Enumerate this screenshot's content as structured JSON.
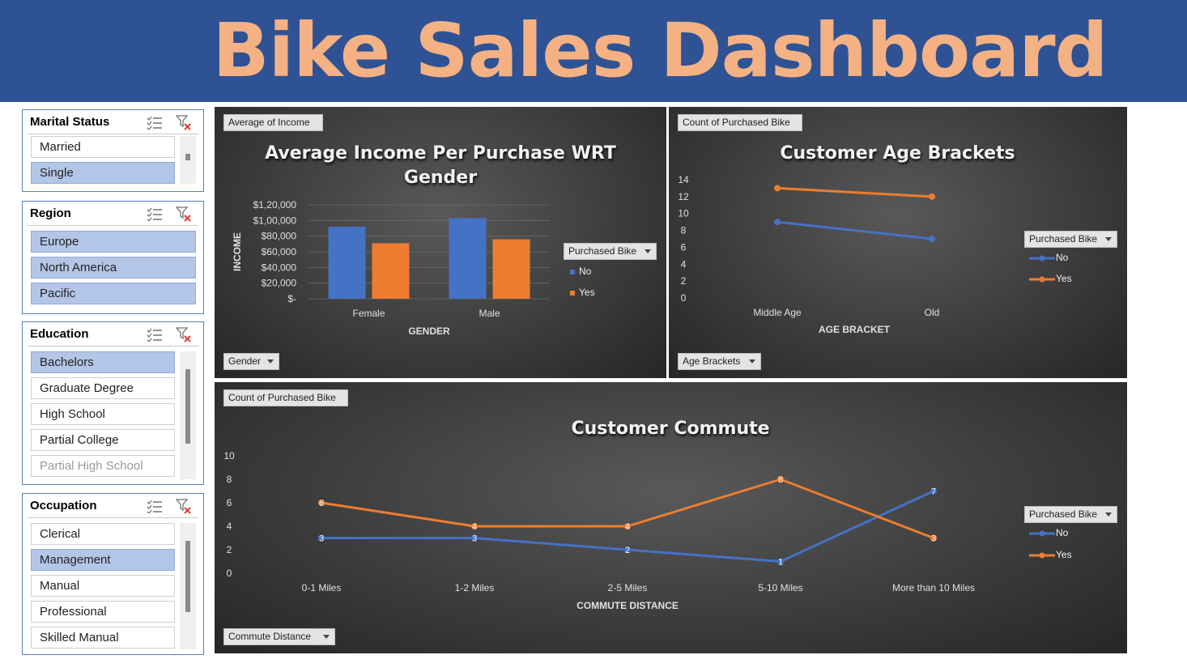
{
  "banner": {
    "title": "Bike Sales Dashboard"
  },
  "slicers": {
    "marital": {
      "title": "Marital Status",
      "items": [
        {
          "label": "Married"
        },
        {
          "label": "Single"
        }
      ]
    },
    "region": {
      "title": "Region",
      "items": [
        {
          "label": "Europe"
        },
        {
          "label": "North America"
        },
        {
          "label": "Pacific"
        }
      ]
    },
    "education": {
      "title": "Education",
      "items": [
        {
          "label": "Bachelors"
        },
        {
          "label": "Graduate Degree"
        },
        {
          "label": "High School"
        },
        {
          "label": "Partial College"
        },
        {
          "label": "Partial High School"
        }
      ]
    },
    "occupation": {
      "title": "Occupation",
      "items": [
        {
          "label": "Clerical"
        },
        {
          "label": "Management"
        },
        {
          "label": "Manual"
        },
        {
          "label": "Professional"
        },
        {
          "label": "Skilled Manual"
        }
      ]
    }
  },
  "icons": {
    "multi_select": "multi-select-icon",
    "clear_filter": "clear-filter-icon"
  },
  "colors": {
    "banner": "#2e5293",
    "title": "#f4b183",
    "series_no": "#4472c4",
    "series_yes": "#ed7d31",
    "selected_item": "#b4c6e7"
  },
  "chart_data": [
    {
      "type": "bar",
      "title": "Average Income Per Purchase WRT Gender",
      "value_field": "Average of Income",
      "axis_field": "Gender",
      "xlabel": "GENDER",
      "ylabel": "INCOME",
      "categories": [
        "Female",
        "Male"
      ],
      "series": [
        {
          "name": "No",
          "values": [
            92000,
            103000
          ]
        },
        {
          "name": "Yes",
          "values": [
            71000,
            76000
          ]
        }
      ],
      "ylim": [
        0,
        120000
      ],
      "yticks": [
        "$-",
        "$20,000",
        "$40,000",
        "$60,000",
        "$80,000",
        "$1,00,000",
        "$1,20,000"
      ],
      "legend_title": "Purchased Bike",
      "legend_position": "right",
      "grid": true
    },
    {
      "type": "line",
      "title": "Customer Age Brackets",
      "value_field": "Count of Purchased Bike",
      "axis_field": "Age Brackets",
      "xlabel": "AGE BRACKET",
      "categories": [
        "Middle Age",
        "Old"
      ],
      "series": [
        {
          "name": "No",
          "values": [
            9,
            7
          ]
        },
        {
          "name": "Yes",
          "values": [
            13,
            12
          ]
        }
      ],
      "ylim": [
        0,
        14
      ],
      "yticks": [
        "0",
        "2",
        "4",
        "6",
        "8",
        "10",
        "12",
        "14"
      ],
      "legend_title": "Purchased Bike",
      "legend_position": "right",
      "grid": false
    },
    {
      "type": "line",
      "title": "Customer Commute",
      "value_field": "Count of Purchased Bike",
      "axis_field": "Commute Distance",
      "xlabel": "COMMUTE DISTANCE",
      "categories": [
        "0-1 Miles",
        "1-2 Miles",
        "2-5 Miles",
        "5-10 Miles",
        "More than 10 Miles"
      ],
      "series": [
        {
          "name": "No",
          "values": [
            3,
            3,
            2,
            1,
            7
          ]
        },
        {
          "name": "Yes",
          "values": [
            6,
            4,
            4,
            8,
            3
          ]
        }
      ],
      "ylim": [
        0,
        10
      ],
      "yticks": [
        "0",
        "2",
        "4",
        "6",
        "8",
        "10"
      ],
      "legend_title": "Purchased Bike",
      "legend_position": "right",
      "grid": false,
      "data_labels": true
    }
  ]
}
